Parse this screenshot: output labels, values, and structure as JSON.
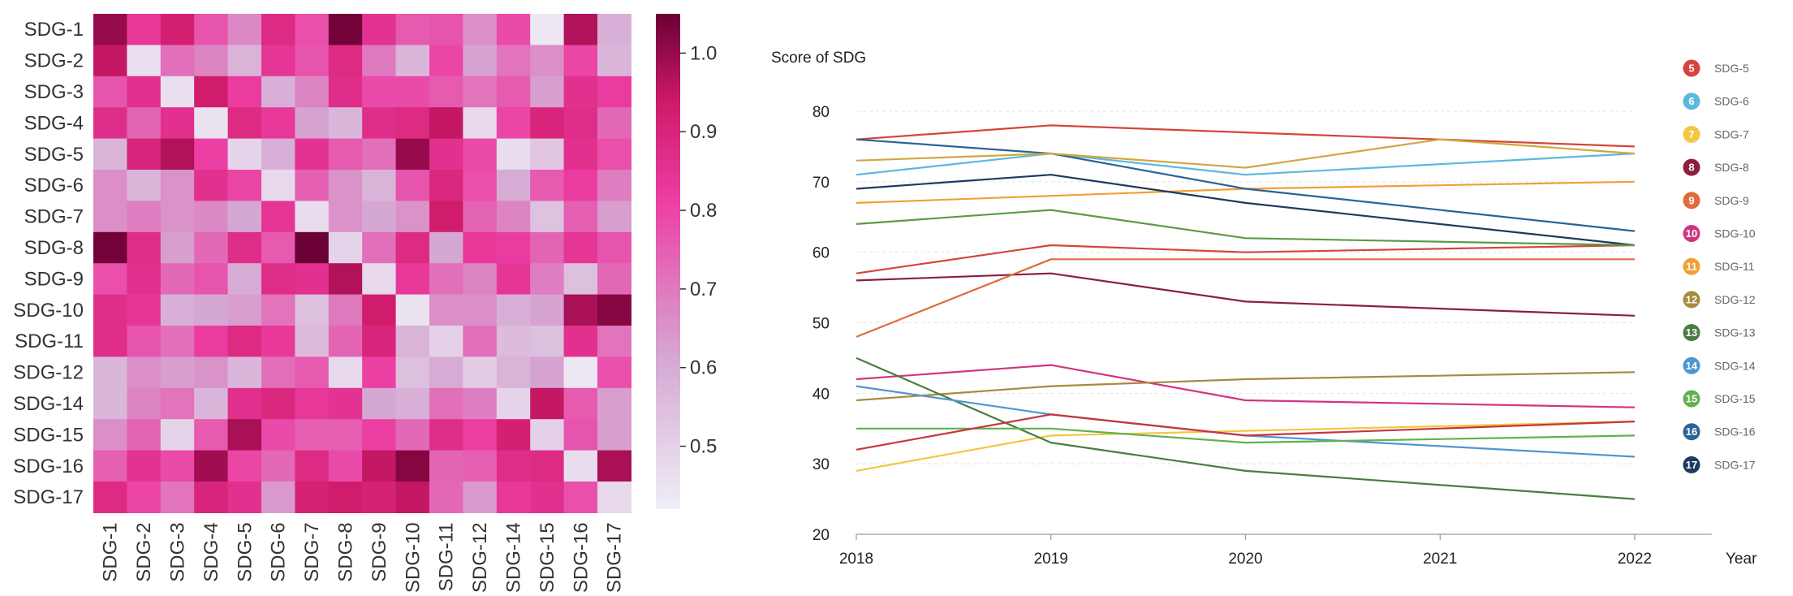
{
  "chart_data": [
    {
      "type": "heatmap",
      "rows": [
        "SDG-1",
        "SDG-2",
        "SDG-3",
        "SDG-4",
        "SDG-5",
        "SDG-6",
        "SDG-7",
        "SDG-8",
        "SDG-9",
        "SDG-10",
        "SDG-11",
        "SDG-12",
        "SDG-14",
        "SDG-15",
        "SDG-16",
        "SDG-17"
      ],
      "columns": [
        "SDG-1",
        "SDG-2",
        "SDG-3",
        "SDG-4",
        "SDG-5",
        "SDG-6",
        "SDG-7",
        "SDG-8",
        "SDG-9",
        "SDG-10",
        "SDG-11",
        "SDG-12",
        "SDG-14",
        "SDG-15",
        "SDG-16",
        "SDG-17"
      ],
      "values": [
        [
          1.0,
          0.83,
          0.92,
          0.77,
          0.67,
          0.88,
          0.78,
          1.04,
          0.85,
          0.76,
          0.77,
          0.66,
          0.79,
          0.44,
          0.97,
          0.59
        ],
        [
          0.95,
          0.46,
          0.72,
          0.68,
          0.58,
          0.84,
          0.77,
          0.88,
          0.7,
          0.57,
          0.8,
          0.62,
          0.71,
          0.66,
          0.8,
          0.57
        ],
        [
          0.77,
          0.86,
          0.46,
          0.93,
          0.82,
          0.59,
          0.68,
          0.87,
          0.79,
          0.79,
          0.76,
          0.71,
          0.76,
          0.63,
          0.86,
          0.82
        ],
        [
          0.87,
          0.74,
          0.86,
          0.45,
          0.88,
          0.83,
          0.62,
          0.57,
          0.87,
          0.88,
          0.95,
          0.48,
          0.8,
          0.9,
          0.87,
          0.73
        ],
        [
          0.58,
          0.9,
          0.97,
          0.81,
          0.49,
          0.59,
          0.85,
          0.76,
          0.72,
          1.0,
          0.86,
          0.79,
          0.47,
          0.53,
          0.86,
          0.78
        ],
        [
          0.66,
          0.58,
          0.65,
          0.86,
          0.8,
          0.48,
          0.75,
          0.65,
          0.58,
          0.77,
          0.89,
          0.78,
          0.6,
          0.76,
          0.82,
          0.69
        ],
        [
          0.66,
          0.69,
          0.65,
          0.67,
          0.61,
          0.84,
          0.47,
          0.65,
          0.61,
          0.65,
          0.93,
          0.74,
          0.68,
          0.54,
          0.75,
          0.63
        ],
        [
          1.04,
          0.87,
          0.63,
          0.73,
          0.87,
          0.76,
          1.05,
          0.49,
          0.72,
          0.88,
          0.61,
          0.83,
          0.82,
          0.74,
          0.84,
          0.77
        ],
        [
          0.78,
          0.86,
          0.73,
          0.77,
          0.6,
          0.87,
          0.86,
          0.97,
          0.48,
          0.83,
          0.72,
          0.68,
          0.84,
          0.69,
          0.55,
          0.73
        ],
        [
          0.87,
          0.84,
          0.59,
          0.61,
          0.63,
          0.71,
          0.55,
          0.7,
          0.93,
          0.45,
          0.66,
          0.66,
          0.59,
          0.62,
          0.98,
          1.02
        ],
        [
          0.87,
          0.77,
          0.72,
          0.82,
          0.88,
          0.83,
          0.56,
          0.74,
          0.9,
          0.58,
          0.5,
          0.72,
          0.56,
          0.55,
          0.86,
          0.71
        ],
        [
          0.57,
          0.66,
          0.63,
          0.65,
          0.57,
          0.72,
          0.76,
          0.48,
          0.81,
          0.55,
          0.6,
          0.51,
          0.58,
          0.62,
          0.44,
          0.78
        ],
        [
          0.57,
          0.68,
          0.71,
          0.57,
          0.86,
          0.89,
          0.83,
          0.85,
          0.61,
          0.59,
          0.72,
          0.69,
          0.49,
          0.95,
          0.76,
          0.63
        ],
        [
          0.66,
          0.74,
          0.49,
          0.76,
          0.98,
          0.79,
          0.75,
          0.75,
          0.81,
          0.73,
          0.87,
          0.81,
          0.92,
          0.5,
          0.77,
          0.63
        ],
        [
          0.75,
          0.85,
          0.79,
          0.99,
          0.8,
          0.73,
          0.88,
          0.79,
          0.95,
          1.02,
          0.74,
          0.75,
          0.87,
          0.88,
          0.47,
          0.98
        ],
        [
          0.88,
          0.8,
          0.71,
          0.9,
          0.86,
          0.64,
          0.91,
          0.93,
          0.91,
          0.95,
          0.73,
          0.64,
          0.83,
          0.86,
          0.78,
          0.48
        ]
      ],
      "colorbar": {
        "min": 0.42,
        "max": 1.05,
        "ticks": [
          "0.5",
          "0.6",
          "0.7",
          "0.8",
          "0.9",
          "1.0"
        ],
        "tick_values": [
          0.5,
          0.6,
          0.7,
          0.8,
          0.9,
          1.0
        ]
      },
      "colors": {
        "low": "#efeef6",
        "mid_low": "#d5a9d3",
        "mid": "#ec3fa4",
        "mid_high": "#d01a6a",
        "high": "#6a0034"
      }
    },
    {
      "type": "line",
      "ylabel": "Score of SDG",
      "xlabel": "Year",
      "x": [
        2018,
        2019,
        2020,
        2021,
        2022
      ],
      "x_tick_labels": [
        "2018",
        "2019",
        "2020",
        "2021",
        "2022"
      ],
      "ylim": [
        20,
        80
      ],
      "y_ticks": [
        20,
        30,
        40,
        50,
        60,
        70,
        80
      ],
      "y_tick_labels": [
        "20",
        "30",
        "40",
        "50",
        "60",
        "70",
        "80"
      ],
      "grid": "horizontal dashed",
      "legend_position": "right",
      "series": [
        {
          "name": "SDG-5",
          "badge": "5",
          "color": "#d4463a",
          "x": [
            2018,
            2019,
            2020,
            2022
          ],
          "values": [
            76,
            78,
            77,
            75
          ]
        },
        {
          "name": "SDG-6",
          "badge": "6",
          "color": "#5bb8de",
          "x": [
            2018,
            2019,
            2020,
            2022
          ],
          "values": [
            71,
            74,
            71,
            74
          ]
        },
        {
          "name": "SDG-7",
          "badge": "7",
          "color": "#f2c744",
          "x": [
            2018,
            2019,
            2022
          ],
          "values": [
            29,
            34,
            36
          ]
        },
        {
          "name": "SDG-8",
          "badge": "8",
          "color": "#8a1f3f",
          "x": [
            2018,
            2019,
            2020,
            2022
          ],
          "values": [
            56,
            57,
            53,
            51
          ]
        },
        {
          "name": "SDG-9",
          "badge": "9",
          "color": "#e06b3c",
          "x": [
            2018,
            2019,
            2020,
            2022
          ],
          "values": [
            48,
            59,
            59,
            59
          ]
        },
        {
          "name": "SDG-10",
          "badge": "10",
          "color": "#d0357f",
          "x": [
            2018,
            2019,
            2020,
            2022
          ],
          "values": [
            42,
            44,
            39,
            38
          ]
        },
        {
          "name": "SDG-11",
          "badge": "11",
          "color": "#f19f36",
          "x": [
            2018,
            2019,
            2020,
            2022
          ],
          "values": [
            67,
            68,
            69,
            70
          ]
        },
        {
          "name": "SDG-12",
          "badge": "12",
          "color": "#a78a3e",
          "x": [
            2018,
            2019,
            2020,
            2022
          ],
          "values": [
            39,
            41,
            42,
            43
          ]
        },
        {
          "name": "SDG-13",
          "badge": "13",
          "color": "#4a7c42",
          "x": [
            2018,
            2019,
            2020,
            2022
          ],
          "values": [
            45,
            33,
            29,
            25
          ]
        },
        {
          "name": "SDG-14",
          "badge": "14",
          "color": "#4f95d1",
          "x": [
            2018,
            2019,
            2020,
            2022
          ],
          "values": [
            41,
            37,
            34,
            31
          ]
        },
        {
          "name": "SDG-15",
          "badge": "15",
          "color": "#62b04f",
          "x": [
            2018,
            2019,
            2020,
            2022
          ],
          "values": [
            35,
            35,
            33,
            34
          ]
        },
        {
          "name": "SDG-16",
          "badge": "16",
          "color": "#2a6496",
          "x": [
            2018,
            2019,
            2020,
            2022
          ],
          "values": [
            76,
            74,
            69,
            63
          ]
        },
        {
          "name": "SDG-17",
          "badge": "17",
          "color": "#1d3a5f",
          "x": [
            2018,
            2019,
            2020,
            2022
          ],
          "values": [
            69,
            71,
            67,
            61
          ]
        },
        {
          "name": "",
          "badge": "",
          "color": "#d4463a",
          "x": [
            2018,
            2019,
            2020,
            2022
          ],
          "values": [
            57,
            61,
            60,
            61
          ]
        },
        {
          "name": "",
          "badge": "",
          "color": "#d2a640",
          "x": [
            2018,
            2019,
            2020,
            2021,
            2022
          ],
          "values": [
            73,
            74,
            72,
            76,
            74
          ]
        },
        {
          "name": "",
          "badge": "",
          "color": "#5b9a46",
          "x": [
            2018,
            2019,
            2020,
            2022
          ],
          "values": [
            64,
            66,
            62,
            61
          ]
        },
        {
          "name": "",
          "badge": "",
          "color": "#c7353b",
          "x": [
            2018,
            2019,
            2020,
            2022
          ],
          "values": [
            32,
            37,
            34,
            36
          ]
        }
      ]
    }
  ]
}
